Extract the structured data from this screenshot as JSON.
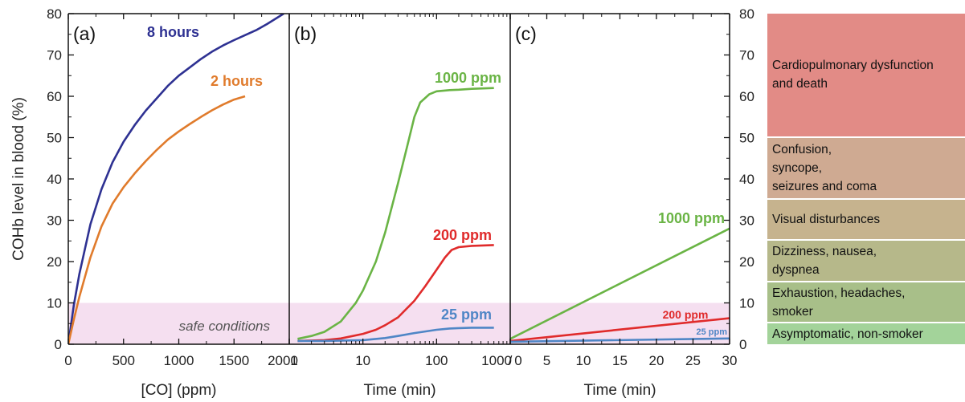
{
  "chart_data": [
    {
      "panel": "(a)",
      "type": "line",
      "xlabel": "[CO] (ppm)",
      "ylabel": "COHb level in blood (%)",
      "xlim": [
        0,
        2000
      ],
      "ylim": [
        0,
        80
      ],
      "xticks": [
        "0",
        "500",
        "1000",
        "1500",
        "2000"
      ],
      "yticks": [
        "0",
        "10",
        "20",
        "30",
        "40",
        "50",
        "60",
        "70",
        "80"
      ],
      "shaded_region": {
        "y": [
          0,
          10
        ],
        "label": "safe conditions",
        "color": "#f5dff0"
      },
      "series": [
        {
          "name": "8 hours",
          "color": "#2e3192",
          "x": [
            0,
            50,
            100,
            200,
            300,
            400,
            500,
            600,
            700,
            800,
            900,
            1000,
            1100,
            1200,
            1300,
            1400,
            1500,
            1600,
            1700,
            1800,
            1950
          ],
          "y": [
            0,
            9.5,
            17,
            29,
            37.5,
            44,
            49,
            53,
            56.5,
            59.5,
            62.5,
            65,
            67,
            69,
            70.8,
            72.3,
            73.6,
            74.8,
            76,
            77.5,
            80
          ]
        },
        {
          "name": "2 hours",
          "color": "#e07b2c",
          "x": [
            0,
            50,
            100,
            200,
            300,
            400,
            500,
            600,
            700,
            800,
            900,
            1000,
            1100,
            1200,
            1300,
            1400,
            1500,
            1600
          ],
          "y": [
            0,
            6,
            11.5,
            21,
            28.5,
            34,
            38,
            41.3,
            44.3,
            47,
            49.5,
            51.5,
            53.3,
            55,
            56.6,
            58,
            59.2,
            60
          ]
        }
      ]
    },
    {
      "panel": "(b)",
      "type": "line",
      "xscale": "log",
      "xlabel": "Time (min)",
      "xlim": [
        1,
        1000
      ],
      "ylim": [
        0,
        80
      ],
      "xticks": [
        "1",
        "10",
        "100",
        "1000"
      ],
      "shaded_region": {
        "y": [
          0,
          10
        ],
        "color": "#f5dff0"
      },
      "series": [
        {
          "name": "1000 ppm",
          "color": "#6ab445",
          "x": [
            1.3,
            2,
            3,
            5,
            8,
            10,
            15,
            20,
            30,
            40,
            50,
            60,
            80,
            100,
            150,
            200,
            300,
            600
          ],
          "y": [
            1.3,
            2,
            3,
            5.5,
            10,
            13,
            20,
            27,
            39,
            48,
            55,
            58.5,
            60.5,
            61.2,
            61.5,
            61.6,
            61.8,
            62
          ]
        },
        {
          "name": "200 ppm",
          "color": "#e02b2b",
          "x": [
            1.3,
            2,
            3,
            5,
            10,
            15,
            20,
            30,
            50,
            70,
            100,
            130,
            160,
            200,
            300,
            600
          ],
          "y": [
            0.8,
            0.9,
            1,
            1.4,
            2.5,
            3.5,
            4.6,
            6.5,
            10.5,
            14,
            18,
            21,
            22.8,
            23.5,
            23.8,
            24
          ]
        },
        {
          "name": "25 ppm",
          "color": "#4f86c6",
          "x": [
            1.3,
            3,
            10,
            20,
            30,
            50,
            100,
            150,
            200,
            300,
            600
          ],
          "y": [
            0.8,
            0.8,
            1,
            1.5,
            2,
            2.7,
            3.5,
            3.8,
            3.9,
            4,
            4
          ]
        }
      ]
    },
    {
      "panel": "(c)",
      "type": "line",
      "xlabel": "Time (min)",
      "xlim": [
        0,
        30
      ],
      "ylim": [
        0,
        80
      ],
      "xticks": [
        "0",
        "5",
        "10",
        "15",
        "20",
        "25",
        "30"
      ],
      "yticks": [
        "0",
        "10",
        "20",
        "30",
        "40",
        "50",
        "60",
        "70",
        "80"
      ],
      "shaded_region": {
        "y": [
          0,
          10
        ],
        "color": "#f5dff0"
      },
      "series": [
        {
          "name": "1000 ppm",
          "color": "#6ab445",
          "x": [
            0,
            30
          ],
          "y": [
            1.3,
            28
          ]
        },
        {
          "name": "200 ppm",
          "color": "#e02b2b",
          "x": [
            0,
            30
          ],
          "y": [
            0.8,
            6.3
          ]
        },
        {
          "name": "25 ppm",
          "color": "#4f86c6",
          "x": [
            0,
            30
          ],
          "y": [
            0.6,
            1.4
          ]
        }
      ]
    }
  ],
  "axis_break": "/",
  "symptoms": [
    {
      "text": "Cardiopulmonary dysfunction\nand death",
      "y_range": [
        50,
        80
      ],
      "color": "#e28b86"
    },
    {
      "text": "Confusion,\nsyncope,\nseizures and coma",
      "y_range": [
        35,
        50
      ],
      "color": "#cfaa92"
    },
    {
      "text": "Visual disturbances",
      "y_range": [
        25,
        35
      ],
      "color": "#c6b38e"
    },
    {
      "text": "Dizziness, nausea,\ndyspnea",
      "y_range": [
        15,
        25
      ],
      "color": "#b6b88a"
    },
    {
      "text": "Exhaustion, headaches,\nsmoker",
      "y_range": [
        5,
        15
      ],
      "color": "#a8bf89"
    },
    {
      "text": "Asymptomatic, non-smoker",
      "y_range": [
        0,
        5
      ],
      "color": "#a3d39a"
    }
  ]
}
